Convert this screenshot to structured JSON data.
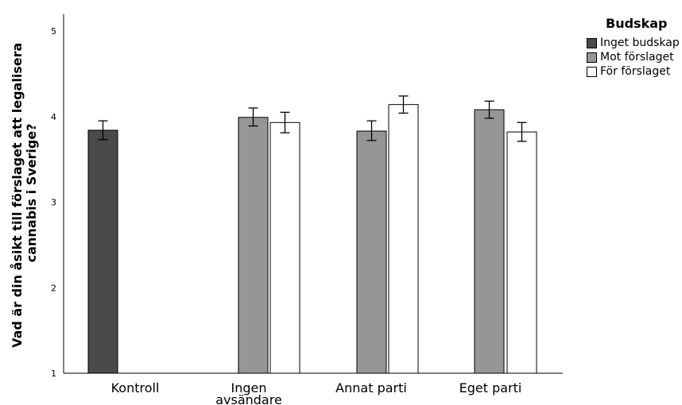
{
  "chart_data": {
    "type": "bar",
    "ylabel": "Vad är din åsikt till förslaget att legalisera cannabis i Sverige?",
    "ylabel_lines": [
      "Vad är din åsikt till förslaget att legalisera",
      "cannabis i Sverige?"
    ],
    "xlabel": "",
    "ylim": [
      1,
      5
    ],
    "yticks": [
      1,
      2,
      3,
      4,
      5
    ],
    "categories": [
      "Kontroll",
      "Ingen avsändare",
      "Annat parti",
      "Eget parti"
    ],
    "category_lines": [
      [
        "Kontroll"
      ],
      [
        "Ingen",
        "avsändare"
      ],
      [
        "Annat parti"
      ],
      [
        "Eget parti"
      ]
    ],
    "legend_title": "Budskap",
    "legend_position": "top-right",
    "series": [
      {
        "name": "Inget budskap",
        "color": "#4a4a4a",
        "values": [
          3.84,
          null,
          null,
          null
        ],
        "error_low": [
          3.73,
          null,
          null,
          null
        ],
        "error_high": [
          3.95,
          null,
          null,
          null
        ]
      },
      {
        "name": "Mot förslaget",
        "color": "#969696",
        "values": [
          null,
          3.99,
          3.83,
          4.08
        ],
        "error_low": [
          null,
          3.89,
          3.72,
          3.98
        ],
        "error_high": [
          null,
          4.1,
          3.95,
          4.18
        ]
      },
      {
        "name": "För förslaget",
        "color": "#ffffff",
        "values": [
          null,
          3.93,
          4.14,
          3.82
        ],
        "error_low": [
          null,
          3.81,
          4.04,
          3.71
        ],
        "error_high": [
          null,
          4.05,
          4.24,
          3.93
        ]
      }
    ],
    "grid": false
  }
}
